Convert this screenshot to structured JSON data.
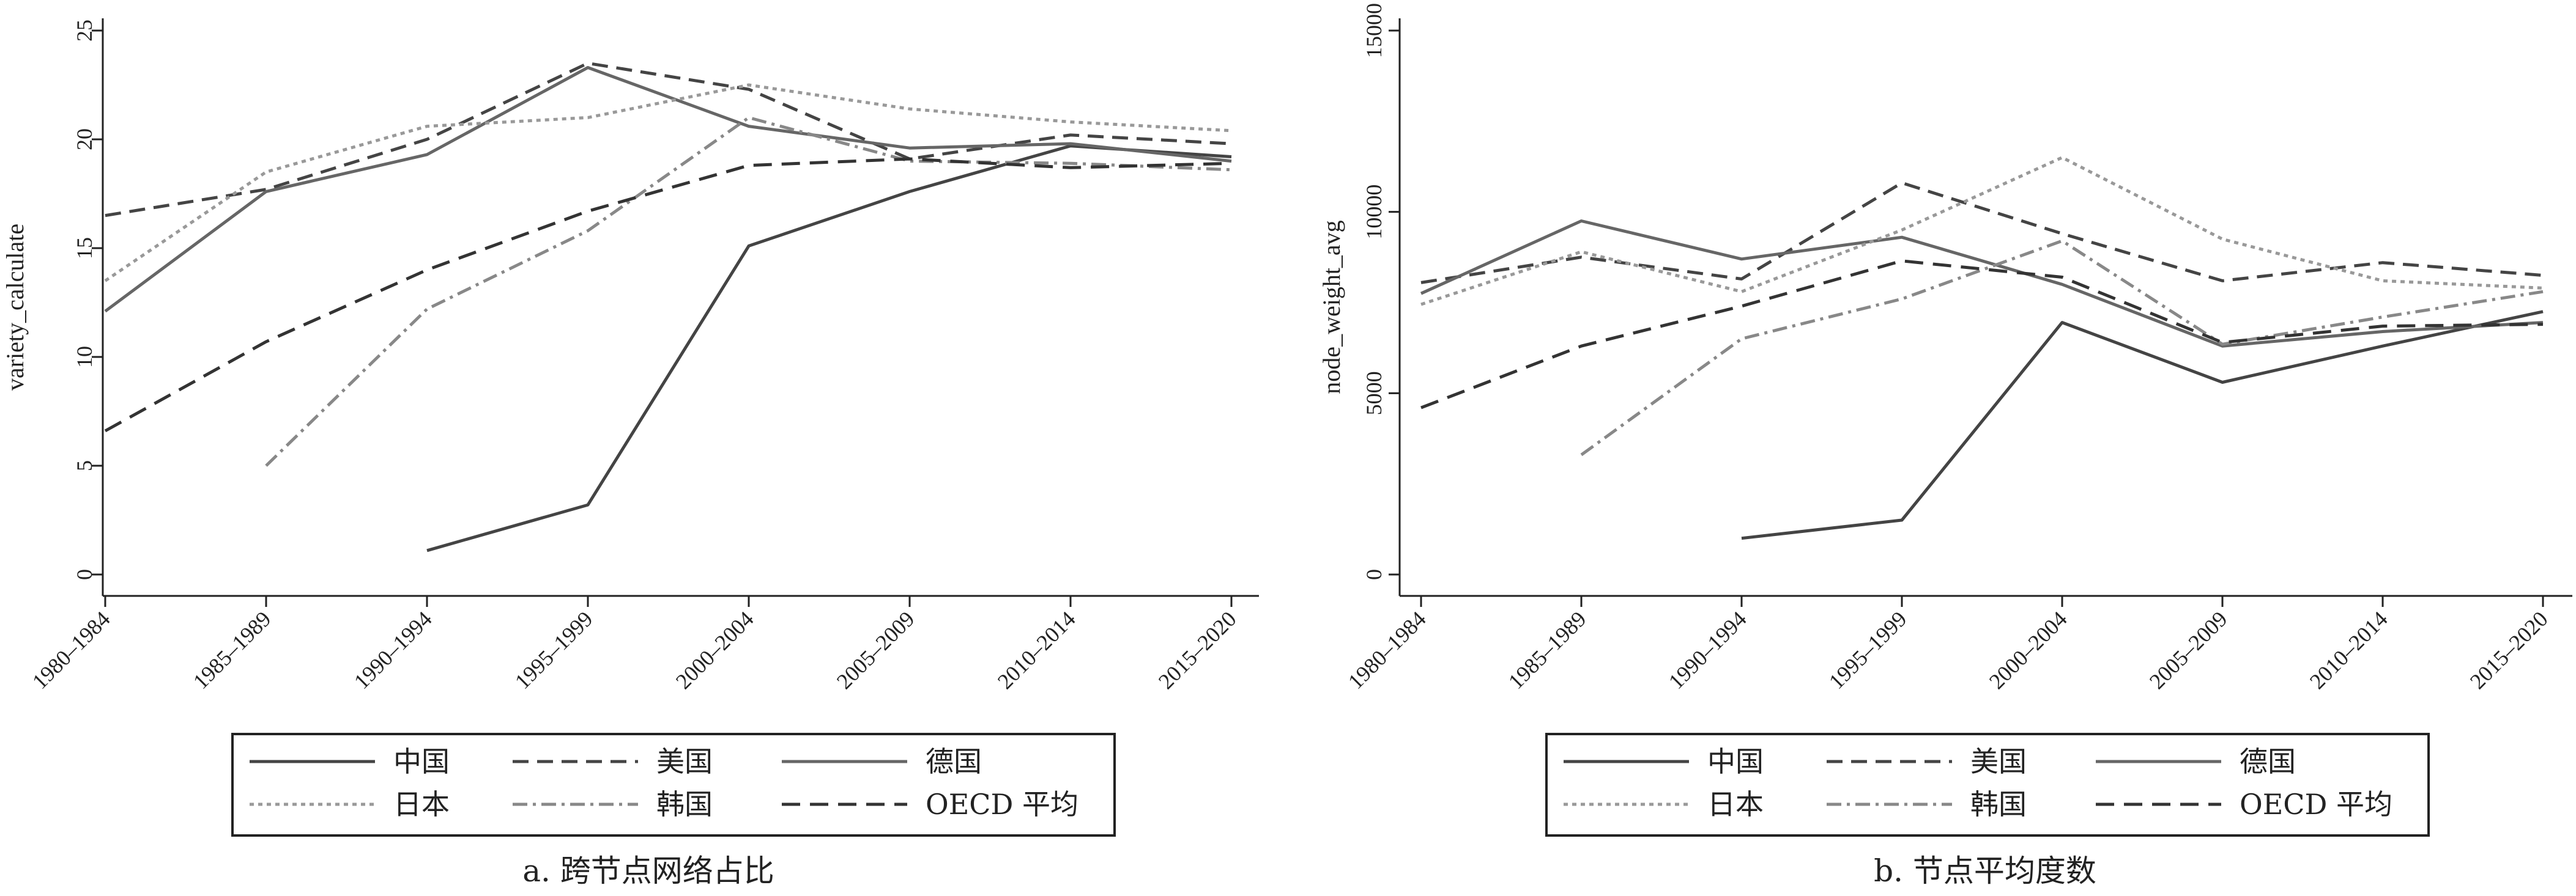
{
  "colors": {
    "china": "#444444",
    "usa": "#444444",
    "germany": "#666666",
    "japan": "#999999",
    "korea": "#888888",
    "oecd": "#333333"
  },
  "chart_data": [
    {
      "type": "line",
      "caption": "a. 跨节点网络占比",
      "ylabel": "variety_calculate",
      "xlabel": "",
      "categories": [
        "1980–1984",
        "1985–1989",
        "1990–1994",
        "1995–1999",
        "2000–2004",
        "2005–2009",
        "2010–2014",
        "2015–2020"
      ],
      "ylim": [
        0,
        25
      ],
      "yticks": [
        0,
        5,
        10,
        15,
        20,
        25
      ],
      "grid": false,
      "legend_position": "bottom",
      "series": [
        {
          "name": "中国",
          "key": "china",
          "dash": "",
          "values": [
            null,
            null,
            1.1,
            3.2,
            15.1,
            17.6,
            19.7,
            19.2
          ]
        },
        {
          "name": "美国",
          "key": "usa",
          "dash": "26 14",
          "values": [
            16.5,
            17.7,
            20.0,
            23.5,
            22.3,
            19.1,
            20.2,
            19.8
          ]
        },
        {
          "name": "德国",
          "key": "germany",
          "dash": "",
          "values": [
            12.1,
            17.6,
            19.3,
            23.3,
            20.6,
            19.6,
            19.8,
            19.0
          ]
        },
        {
          "name": "日本",
          "key": "japan",
          "dash": "7 7",
          "values": [
            13.5,
            18.5,
            20.6,
            21.0,
            22.5,
            21.4,
            20.8,
            20.4
          ]
        },
        {
          "name": "韩国",
          "key": "korea",
          "dash": "24 9 5 9",
          "values": [
            null,
            5.0,
            12.2,
            15.8,
            21.0,
            19.0,
            18.9,
            18.6
          ]
        },
        {
          "name": "OECD 平均",
          "key": "oecd",
          "dash": "30 16",
          "values": [
            6.6,
            10.7,
            14.0,
            16.7,
            18.8,
            19.1,
            18.7,
            18.9
          ]
        }
      ]
    },
    {
      "type": "line",
      "caption": "b. 节点平均度数",
      "ylabel": "node_weight_avg",
      "xlabel": "",
      "categories": [
        "1980–1984",
        "1985–1989",
        "1990–1994",
        "1995–1999",
        "2000–2004",
        "2005–2009",
        "2010–2014",
        "2015–2020"
      ],
      "ylim": [
        0,
        15000
      ],
      "yticks": [
        0,
        5000,
        10000,
        15000
      ],
      "grid": false,
      "legend_position": "bottom",
      "series": [
        {
          "name": "中国",
          "key": "china",
          "dash": "",
          "values": [
            null,
            null,
            1000,
            1500,
            6950,
            5300,
            6300,
            7250
          ]
        },
        {
          "name": "美国",
          "key": "usa",
          "dash": "26 14",
          "values": [
            8050,
            8750,
            8150,
            10800,
            9400,
            8100,
            8600,
            8250
          ]
        },
        {
          "name": "德国",
          "key": "germany",
          "dash": "",
          "values": [
            7750,
            9750,
            8700,
            9300,
            8000,
            6300,
            6700,
            6950
          ]
        },
        {
          "name": "日本",
          "key": "japan",
          "dash": "7 7",
          "values": [
            7450,
            8900,
            7800,
            9500,
            11500,
            9250,
            8100,
            7900
          ]
        },
        {
          "name": "韩国",
          "key": "korea",
          "dash": "24 9 5 9",
          "values": [
            null,
            3300,
            6500,
            7600,
            9200,
            6350,
            7100,
            7800
          ]
        },
        {
          "name": "OECD 平均",
          "key": "oecd",
          "dash": "30 16",
          "values": [
            4600,
            6300,
            7400,
            8650,
            8200,
            6400,
            6850,
            6900
          ]
        }
      ]
    }
  ]
}
